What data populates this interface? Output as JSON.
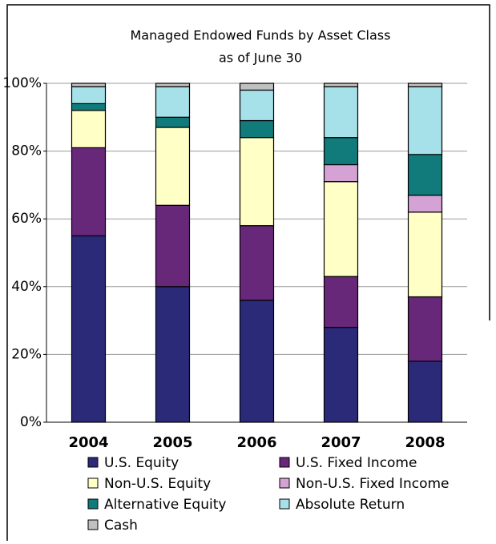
{
  "chart_data": {
    "type": "stacked_bar",
    "title": "Managed Endowed Funds by Asset Class",
    "subtitle": "as of June 30",
    "categories": [
      "2004",
      "2005",
      "2006",
      "2007",
      "2008"
    ],
    "series": [
      {
        "name": "U.S. Equity",
        "color": "#2b2a78",
        "values": [
          55,
          40,
          36,
          28,
          18
        ]
      },
      {
        "name": "U.S. Fixed Income",
        "color": "#68287a",
        "values": [
          26,
          24,
          22,
          15,
          19
        ]
      },
      {
        "name": "Non-U.S. Equity",
        "color": "#ffffc6",
        "values": [
          11,
          23,
          26,
          28,
          25
        ]
      },
      {
        "name": "Non-U.S. Fixed Income",
        "color": "#d4a2d4",
        "values": [
          0,
          0,
          0,
          5,
          5
        ]
      },
      {
        "name": "Alternative Equity",
        "color": "#117b7b",
        "values": [
          2,
          3,
          5,
          8,
          12
        ]
      },
      {
        "name": "Absolute Return",
        "color": "#a6e0e8",
        "values": [
          5,
          9,
          9,
          15,
          20
        ]
      },
      {
        "name": "Cash",
        "color": "#c0c0c0",
        "values": [
          1,
          1,
          2,
          1,
          1
        ]
      }
    ],
    "ylim": [
      0,
      100
    ],
    "yticks": [
      {
        "value": 0,
        "label": "0%"
      },
      {
        "value": 20,
        "label": "20%"
      },
      {
        "value": 40,
        "label": "40%"
      },
      {
        "value": 60,
        "label": "60%"
      },
      {
        "value": 80,
        "label": "80%"
      },
      {
        "value": 100,
        "label": "100%"
      }
    ],
    "grid": true
  }
}
